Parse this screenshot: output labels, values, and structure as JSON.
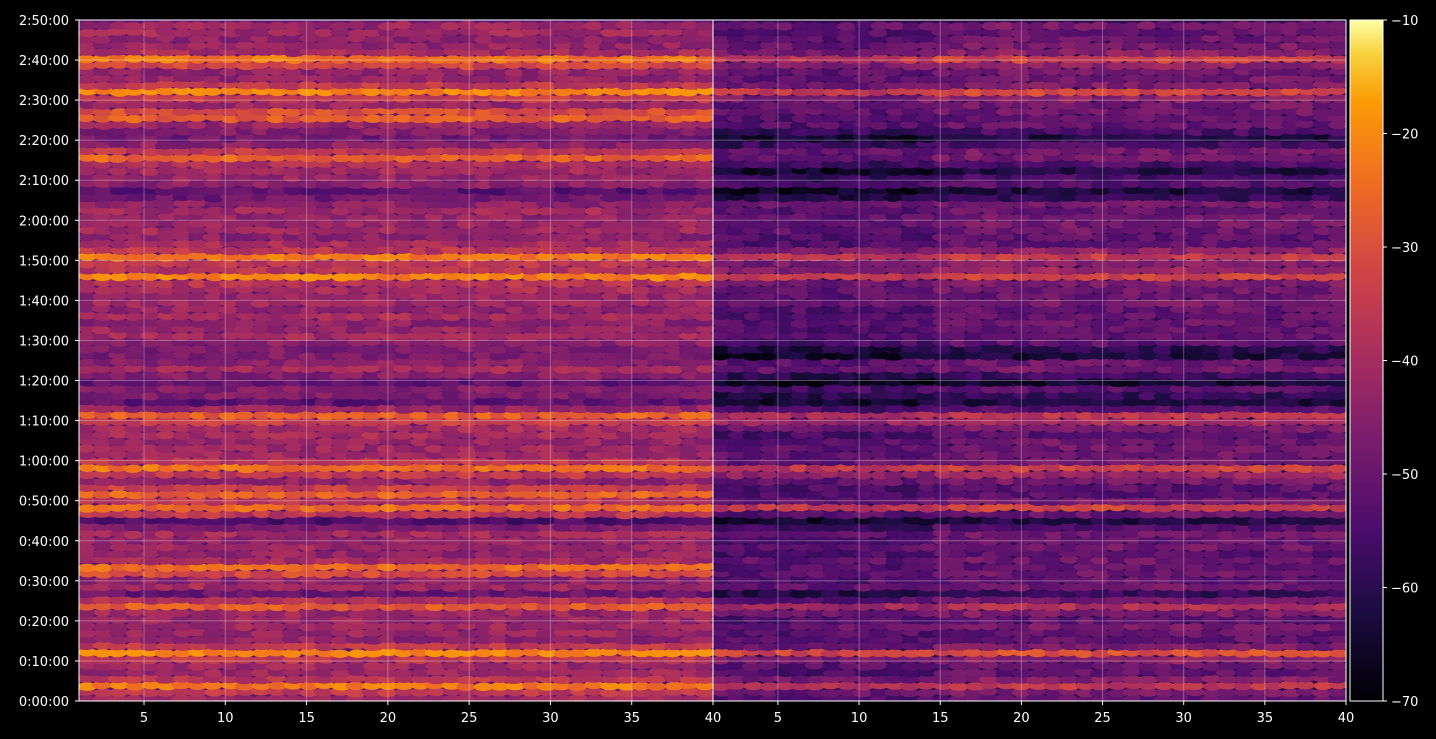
{
  "chart_data": {
    "type": "heatmap",
    "panels": [
      {
        "name": "",
        "x_ticks": [
          5,
          10,
          15,
          20,
          25,
          30,
          35,
          40
        ],
        "xlim": [
          1,
          40
        ],
        "y_ticks": [
          "0:00:00",
          "0:10:00",
          "0:20:00",
          "0:30:00",
          "0:40:00",
          "0:50:00",
          "1:00:00",
          "1:10:00",
          "1:20:00",
          "1:30:00",
          "1:40:00",
          "1:50:00",
          "2:00:00",
          "2:10:00",
          "2:20:00",
          "2:30:00",
          "2:40:00",
          "2:50:00"
        ],
        "ylim_seconds": [
          0,
          10200
        ],
        "bright_bands_hhmm": [
          "0:04",
          "0:12",
          "0:24",
          "0:33",
          "0:48",
          "0:52",
          "0:58",
          "1:11",
          "1:46",
          "1:51",
          "2:16",
          "2:26",
          "2:32",
          "2:40"
        ],
        "dark_bands_hhmm": [
          "0:26",
          "0:45",
          "1:15",
          "1:20",
          "1:27",
          "2:07",
          "2:21"
        ],
        "value_range": [
          -65,
          -18
        ]
      },
      {
        "name": "",
        "x_ticks": [
          5,
          10,
          15,
          20,
          25,
          30,
          35,
          40
        ],
        "xlim": [
          1,
          40
        ],
        "y_ticks": [],
        "ylim_seconds": [
          0,
          10200
        ],
        "bright_bands_hhmm": [
          "0:04",
          "0:12",
          "0:24",
          "0:48",
          "0:58",
          "1:11",
          "1:46",
          "1:51",
          "2:32",
          "2:40"
        ],
        "dark_bands_hhmm": [
          "0:26",
          "0:45",
          "1:15",
          "1:20",
          "1:27",
          "2:07",
          "2:12",
          "2:21"
        ],
        "value_range": [
          -70,
          -20
        ]
      }
    ],
    "colorbar": {
      "colormap": "inferno",
      "ticks": [
        -10,
        -20,
        -30,
        -40,
        -50,
        -60,
        -70
      ],
      "range": [
        -70,
        -10
      ]
    },
    "grid": true,
    "background": "#000000"
  }
}
